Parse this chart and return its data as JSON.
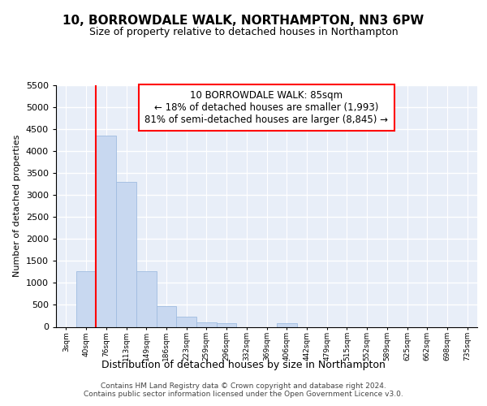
{
  "title1": "10, BORROWDALE WALK, NORTHAMPTON, NN3 6PW",
  "title2": "Size of property relative to detached houses in Northampton",
  "xlabel": "Distribution of detached houses by size in Northampton",
  "ylabel": "Number of detached properties",
  "categories": [
    "3sqm",
    "40sqm",
    "76sqm",
    "113sqm",
    "149sqm",
    "186sqm",
    "223sqm",
    "259sqm",
    "296sqm",
    "332sqm",
    "369sqm",
    "406sqm",
    "442sqm",
    "479sqm",
    "515sqm",
    "552sqm",
    "589sqm",
    "625sqm",
    "662sqm",
    "698sqm",
    "735sqm"
  ],
  "values": [
    0,
    1275,
    4350,
    3300,
    1275,
    475,
    225,
    100,
    75,
    0,
    0,
    75,
    0,
    0,
    0,
    0,
    0,
    0,
    0,
    0,
    0
  ],
  "bar_color": "#c8d8f0",
  "bar_edge_color": "#a0bce0",
  "red_line_index": 2,
  "annotation_text": "10 BORROWDALE WALK: 85sqm\n← 18% of detached houses are smaller (1,993)\n81% of semi-detached houses are larger (8,845) →",
  "footer": "Contains HM Land Registry data © Crown copyright and database right 2024.\nContains public sector information licensed under the Open Government Licence v3.0.",
  "ylim": [
    0,
    5500
  ],
  "yticks": [
    0,
    500,
    1000,
    1500,
    2000,
    2500,
    3000,
    3500,
    4000,
    4500,
    5000,
    5500
  ],
  "bg_color": "#e8eef8"
}
